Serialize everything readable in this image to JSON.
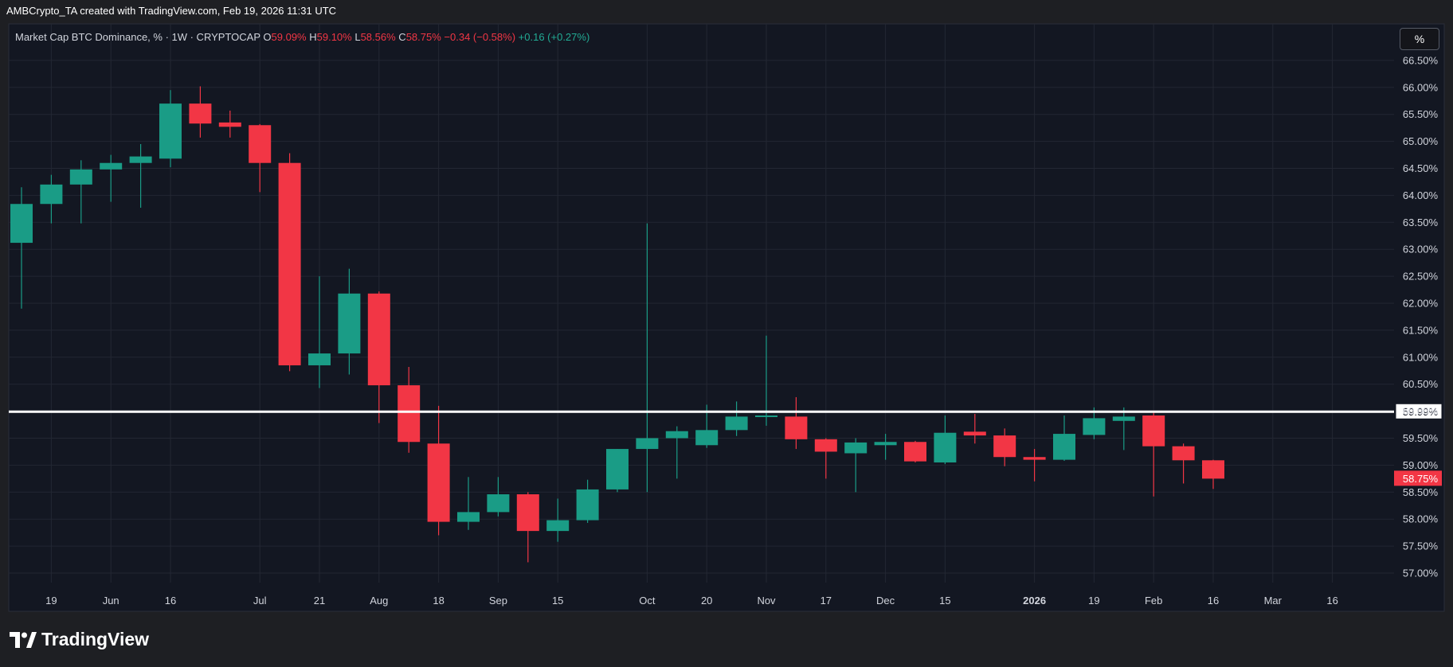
{
  "header": {
    "creator_text": "AMBCrypto_TA created with TradingView.com, Feb 19, 2026 11:31 UTC"
  },
  "legend": {
    "symbol": "Market Cap BTC Dominance, % · 1W · CRYPTOCAP",
    "open_label": "O",
    "open_value": "59.09%",
    "high_label": "H",
    "high_value": "59.10%",
    "low_label": "L",
    "low_value": "58.56%",
    "close_label": "C",
    "close_value": "58.75%",
    "change": "−0.34 (−0.58%)",
    "extra_change": "+0.16 (+0.27%)"
  },
  "unit_button": "%",
  "footer": {
    "brand": "TradingView"
  },
  "colors": {
    "up": "#1a9c86",
    "down": "#f23645",
    "background": "#131722",
    "grid": "#232733",
    "level_line": "#ffffff"
  },
  "chart_data": {
    "type": "candlestick",
    "ylabel": "%",
    "ylim": [
      56.8,
      66.85
    ],
    "y_ticks": [
      "57.00%",
      "57.50%",
      "58.00%",
      "58.50%",
      "59.00%",
      "59.50%",
      "60.00%",
      "60.50%",
      "61.00%",
      "61.50%",
      "62.00%",
      "62.50%",
      "63.00%",
      "63.50%",
      "64.00%",
      "64.50%",
      "65.00%",
      "65.50%",
      "66.00%",
      "66.50%"
    ],
    "y_tick_values": [
      57.0,
      57.5,
      58.0,
      58.5,
      59.0,
      59.5,
      60.0,
      60.5,
      61.0,
      61.5,
      62.0,
      62.5,
      63.0,
      63.5,
      64.0,
      64.5,
      65.0,
      65.5,
      66.0,
      66.5
    ],
    "x_tick_labels": [
      {
        "label": "19",
        "index": 1,
        "bold": false
      },
      {
        "label": "Jun",
        "index": 3,
        "bold": false
      },
      {
        "label": "16",
        "index": 5,
        "bold": false
      },
      {
        "label": "Jul",
        "index": 8,
        "bold": false
      },
      {
        "label": "21",
        "index": 10,
        "bold": false
      },
      {
        "label": "Aug",
        "index": 12,
        "bold": false
      },
      {
        "label": "18",
        "index": 14,
        "bold": false
      },
      {
        "label": "Sep",
        "index": 16,
        "bold": false
      },
      {
        "label": "15",
        "index": 18,
        "bold": false
      },
      {
        "label": "Oct",
        "index": 21,
        "bold": false
      },
      {
        "label": "20",
        "index": 23,
        "bold": false
      },
      {
        "label": "Nov",
        "index": 25,
        "bold": false
      },
      {
        "label": "17",
        "index": 27,
        "bold": false
      },
      {
        "label": "Dec",
        "index": 29,
        "bold": false
      },
      {
        "label": "15",
        "index": 31,
        "bold": false
      },
      {
        "label": "2026",
        "index": 34,
        "bold": true
      },
      {
        "label": "19",
        "index": 36,
        "bold": false
      },
      {
        "label": "Feb",
        "index": 38,
        "bold": false
      },
      {
        "label": "16",
        "index": 40,
        "bold": false
      },
      {
        "label": "Mar",
        "index": 42,
        "bold": false
      },
      {
        "label": "16",
        "index": 44,
        "bold": false
      }
    ],
    "candles": [
      {
        "o": 63.12,
        "h": 64.15,
        "l": 61.9,
        "c": 63.84
      },
      {
        "o": 63.84,
        "h": 64.38,
        "l": 63.48,
        "c": 64.2
      },
      {
        "o": 64.2,
        "h": 64.65,
        "l": 63.48,
        "c": 64.48
      },
      {
        "o": 64.48,
        "h": 64.75,
        "l": 63.88,
        "c": 64.6
      },
      {
        "o": 64.6,
        "h": 64.95,
        "l": 63.77,
        "c": 64.72
      },
      {
        "o": 64.68,
        "h": 65.95,
        "l": 64.52,
        "c": 65.7
      },
      {
        "o": 65.7,
        "h": 66.02,
        "l": 65.07,
        "c": 65.33
      },
      {
        "o": 65.35,
        "h": 65.57,
        "l": 65.07,
        "c": 65.27
      },
      {
        "o": 65.3,
        "h": 65.32,
        "l": 64.06,
        "c": 64.6
      },
      {
        "o": 64.6,
        "h": 64.78,
        "l": 60.74,
        "c": 60.85
      },
      {
        "o": 60.85,
        "h": 62.5,
        "l": 60.43,
        "c": 61.07
      },
      {
        "o": 61.07,
        "h": 62.64,
        "l": 60.68,
        "c": 62.18
      },
      {
        "o": 62.18,
        "h": 62.22,
        "l": 59.78,
        "c": 60.48
      },
      {
        "o": 60.48,
        "h": 60.82,
        "l": 59.23,
        "c": 59.43
      },
      {
        "o": 59.4,
        "h": 60.1,
        "l": 57.7,
        "c": 57.95
      },
      {
        "o": 57.95,
        "h": 58.78,
        "l": 57.8,
        "c": 58.13
      },
      {
        "o": 58.13,
        "h": 58.78,
        "l": 58.05,
        "c": 58.46
      },
      {
        "o": 58.46,
        "h": 58.5,
        "l": 57.2,
        "c": 57.78
      },
      {
        "o": 57.78,
        "h": 58.38,
        "l": 57.58,
        "c": 57.98
      },
      {
        "o": 57.98,
        "h": 58.73,
        "l": 57.93,
        "c": 58.55
      },
      {
        "o": 58.55,
        "h": 59.3,
        "l": 58.5,
        "c": 59.3
      },
      {
        "o": 59.3,
        "h": 63.48,
        "l": 58.5,
        "c": 59.5
      },
      {
        "o": 59.5,
        "h": 59.72,
        "l": 58.75,
        "c": 59.63
      },
      {
        "o": 59.37,
        "h": 60.12,
        "l": 59.32,
        "c": 59.65
      },
      {
        "o": 59.65,
        "h": 60.18,
        "l": 59.54,
        "c": 59.9
      },
      {
        "o": 59.9,
        "h": 61.4,
        "l": 59.73,
        "c": 59.92
      },
      {
        "o": 59.9,
        "h": 60.26,
        "l": 59.3,
        "c": 59.48
      },
      {
        "o": 59.48,
        "h": 59.5,
        "l": 58.75,
        "c": 59.25
      },
      {
        "o": 59.22,
        "h": 59.5,
        "l": 58.5,
        "c": 59.42
      },
      {
        "o": 59.37,
        "h": 59.58,
        "l": 59.1,
        "c": 59.43
      },
      {
        "o": 59.43,
        "h": 59.45,
        "l": 59.05,
        "c": 59.07
      },
      {
        "o": 59.05,
        "h": 59.92,
        "l": 59.02,
        "c": 59.6
      },
      {
        "o": 59.62,
        "h": 59.95,
        "l": 59.4,
        "c": 59.55
      },
      {
        "o": 59.55,
        "h": 59.68,
        "l": 58.98,
        "c": 59.15
      },
      {
        "o": 59.15,
        "h": 59.3,
        "l": 58.7,
        "c": 59.1
      },
      {
        "o": 59.1,
        "h": 59.92,
        "l": 59.08,
        "c": 59.58
      },
      {
        "o": 59.56,
        "h": 60.07,
        "l": 59.48,
        "c": 59.87
      },
      {
        "o": 59.82,
        "h": 60.07,
        "l": 59.28,
        "c": 59.9
      },
      {
        "o": 59.92,
        "h": 59.98,
        "l": 58.42,
        "c": 59.35
      },
      {
        "o": 59.35,
        "h": 59.4,
        "l": 58.66,
        "c": 59.09
      },
      {
        "o": 59.09,
        "h": 59.1,
        "l": 58.56,
        "c": 58.75
      }
    ],
    "horizontal_level": {
      "value": 59.99,
      "label": "59.99%"
    },
    "last_price": {
      "value": 58.75,
      "label": "58.75%"
    }
  }
}
